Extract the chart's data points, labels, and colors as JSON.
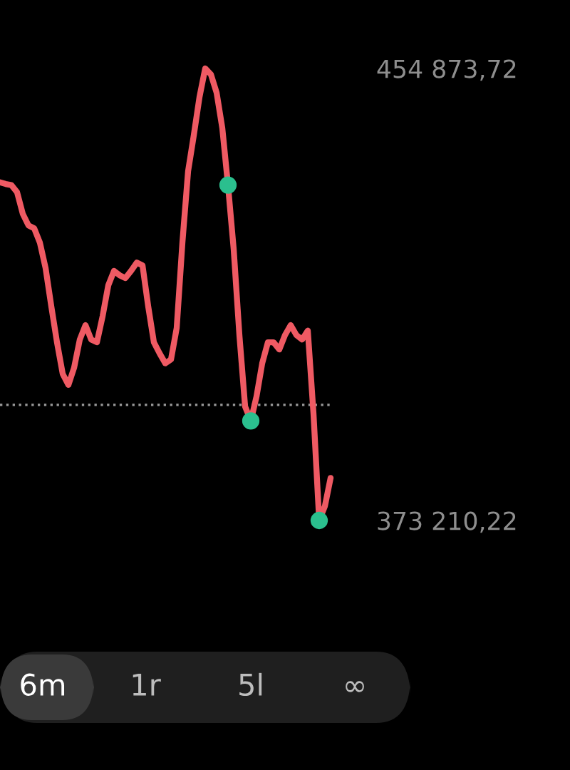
{
  "chart_data": {
    "type": "line",
    "categories": [
      null,
      null,
      null,
      null,
      null,
      null,
      null,
      null,
      null,
      null,
      null,
      null,
      null,
      null,
      null,
      null,
      null,
      null,
      null,
      null,
      null,
      null,
      null,
      null,
      null,
      null,
      null,
      null,
      null,
      null,
      null,
      null,
      null,
      null,
      null,
      null,
      null,
      null,
      null,
      null,
      null,
      null,
      null,
      null,
      null,
      null,
      null,
      null,
      null,
      null,
      null,
      null,
      null,
      null,
      null,
      null,
      null,
      null,
      null
    ],
    "series": [
      {
        "color": "#ef5a63",
        "values": [
          434300,
          434000,
          433800,
          432500,
          428600,
          426500,
          426000,
          423400,
          418800,
          411900,
          405400,
          399700,
          397700,
          400800,
          405900,
          408500,
          405900,
          405400,
          410100,
          415700,
          418300,
          417500,
          417000,
          418300,
          419800,
          419300,
          411900,
          405400,
          403400,
          401600,
          402300,
          408000,
          423400,
          436300,
          442800,
          449700,
          454873.72,
          453800,
          450500,
          444100,
          433800,
          422200,
          406700,
          393800,
          391200,
          395600,
          401600,
          405400,
          405400,
          404100,
          406700,
          408500,
          406700,
          405900,
          407500,
          392500,
          373210.22,
          375800,
          380900
        ]
      },
      {
        "type": "scatter",
        "color": "#2bbf8e",
        "values": [
          null,
          null,
          null,
          null,
          null,
          null,
          null,
          null,
          null,
          null,
          null,
          null,
          null,
          null,
          null,
          null,
          null,
          null,
          null,
          null,
          null,
          null,
          null,
          null,
          null,
          null,
          null,
          null,
          null,
          null,
          null,
          null,
          null,
          null,
          null,
          null,
          null,
          null,
          null,
          null,
          433800,
          null,
          null,
          null,
          391200,
          null,
          null,
          null,
          null,
          null,
          null,
          null,
          null,
          null,
          null,
          null,
          373210.22,
          null,
          null
        ]
      }
    ],
    "ylim": [
      373210.22,
      454873.72
    ],
    "yticks": [
      {
        "value": 454873.72,
        "label": "454 873,72"
      },
      {
        "value": 373210.22,
        "label": "373 210,22"
      }
    ],
    "ref_lines": [
      {
        "axis": "y",
        "value": 394100,
        "color": "#9a9a9a",
        "line_style": "dotted"
      }
    ],
    "annotations": [
      "6m",
      "1r",
      "5l",
      "∞"
    ],
    "grid": false,
    "legend": false,
    "line_style": "solid"
  }
}
